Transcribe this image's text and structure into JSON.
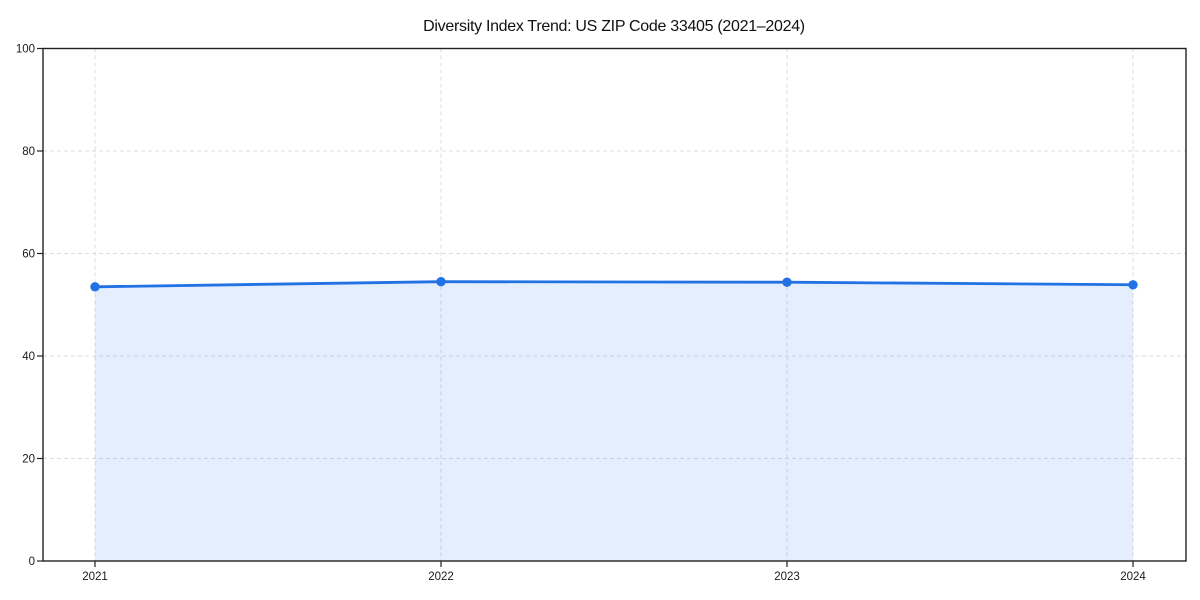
{
  "figure": {
    "background": "#ffffff"
  },
  "chart_data": {
    "type": "area",
    "title": "Diversity Index Trend: US ZIP Code 33405 (2021–2024)",
    "categories": [
      "2021",
      "2022",
      "2023",
      "2024"
    ],
    "series": [
      {
        "name": "Diversity Index",
        "values": [
          53.5,
          54.5,
          54.4,
          53.9
        ]
      }
    ],
    "xlabel": "",
    "ylabel": "",
    "ylim": [
      0,
      100
    ],
    "yticks": [
      0,
      20,
      40,
      60,
      80,
      100
    ],
    "grid": "dashed-both-axes",
    "legend": "none",
    "marker": "circle",
    "colors": {
      "line": "#2272e4",
      "marker": "#2272e4",
      "area_fill": "rgba(34,114,228,0.12)",
      "gridline": "#dcdcdc",
      "spine": "#222222",
      "tick_label": "#1a1a1a",
      "title": "#111111",
      "background": "#ffffff"
    }
  }
}
